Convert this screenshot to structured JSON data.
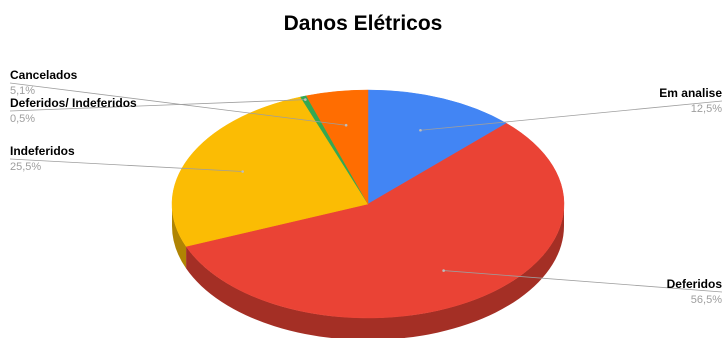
{
  "chart_data": {
    "type": "pie",
    "title": "Danos Elétricos",
    "is_3d": true,
    "slices": [
      {
        "label": "Em analise",
        "value": 12.5,
        "percent_label": "12,5%",
        "color": "#4285F4"
      },
      {
        "label": "Deferidos",
        "value": 56.5,
        "percent_label": "56,5%",
        "color": "#EA4335"
      },
      {
        "label": "Indeferidos",
        "value": 25.5,
        "percent_label": "25,5%",
        "color": "#FBBC04"
      },
      {
        "label": "Deferidos/ Indeferidos",
        "value": 0.5,
        "percent_label": "0,5%",
        "color": "#34A853"
      },
      {
        "label": "Cancelados",
        "value": 5.1,
        "percent_label": "5,1%",
        "color": "#FF6D01"
      }
    ]
  }
}
